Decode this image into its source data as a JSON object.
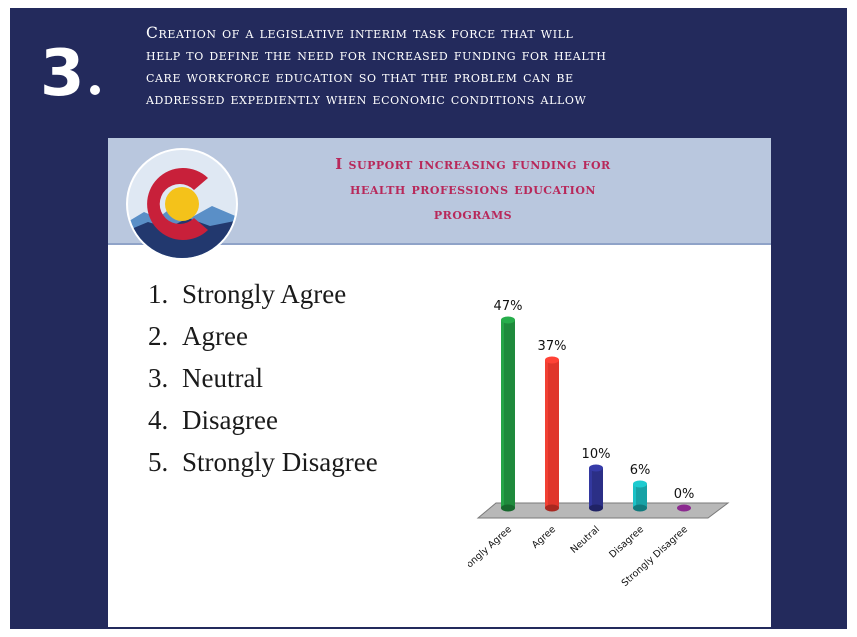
{
  "headline": {
    "number": "3",
    "lines": [
      "Creation of a legislative interim task force that will",
      "help to define the need for increased funding for health",
      "care workforce education so that the problem can be",
      "addressed expediently when economic conditions allow"
    ]
  },
  "slide": {
    "title_lines": [
      "I support increasing funding for",
      "health professions education",
      "programs"
    ],
    "options": [
      {
        "num": "1.",
        "label": "Strongly Agree"
      },
      {
        "num": "2.",
        "label": "Agree"
      },
      {
        "num": "3.",
        "label": "Neutral"
      },
      {
        "num": "4.",
        "label": "Disagree"
      },
      {
        "num": "5.",
        "label": "Strongly Disagree"
      }
    ]
  },
  "colors": {
    "navy": "#232a5c",
    "header_band": "#b9c7de",
    "title_text": "#b8285a",
    "logo_red": "#c8203a",
    "logo_blue": "#22386e",
    "logo_gold": "#f4c21a"
  },
  "chart_data": {
    "type": "bar",
    "title": "",
    "xlabel": "",
    "ylabel": "",
    "categories": [
      "Strongly Agree",
      "Agree",
      "Neutral",
      "Disagree",
      "Strongly Disagree"
    ],
    "values": [
      47,
      37,
      10,
      6,
      0
    ],
    "value_labels": [
      "47%",
      "37%",
      "10%",
      "6%",
      "0%"
    ],
    "colors": [
      "#1f8a3c",
      "#e0352b",
      "#2b2f86",
      "#17a2a6",
      "#8b2a8f"
    ],
    "ylim": [
      0,
      50
    ],
    "grid": false,
    "legend": "none",
    "style": "3d-cylinders"
  }
}
